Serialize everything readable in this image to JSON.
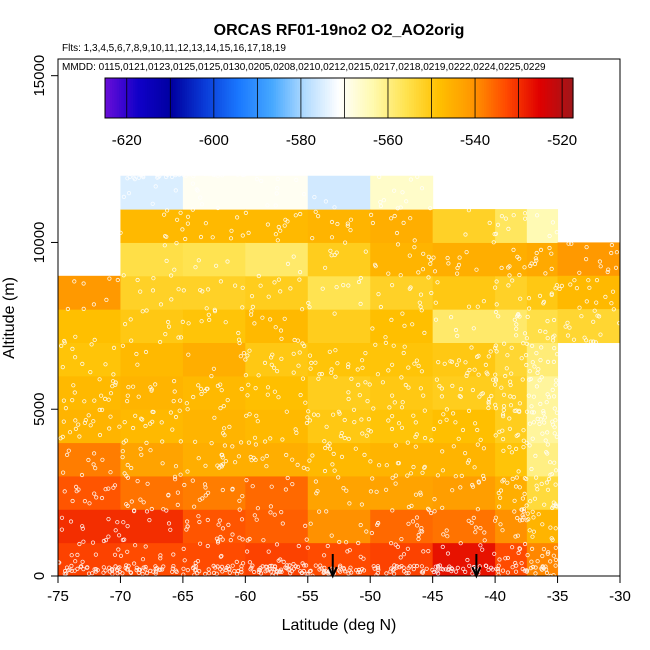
{
  "chart_data": {
    "type": "heatmap",
    "title": "ORCAS RF01-19no2 O2_AO2orig",
    "flights_line": "Flts: 1,3,4,5,6,7,8,9,10,11,12,13,14,15,16,17,18,19",
    "dates_line": "MMDD: 0115,0121,0123,0125,0125,0130,0205,0208,0210,0212,0215,0217,0218,0219,0222,0224,0225,0229",
    "xlabel": "Latitude (deg N)",
    "ylabel": "Altitude (m)",
    "xlim": [
      -75,
      -30
    ],
    "ylim": [
      0,
      15500
    ],
    "x_ticks": [
      -75,
      -70,
      -65,
      -60,
      -55,
      -50,
      -45,
      -40,
      -35,
      -30
    ],
    "x_tick_labels": [
      "-75",
      "-70",
      "-65",
      "-60",
      "-55",
      "-50",
      "-45",
      "-40",
      "-35",
      "-30"
    ],
    "y_ticks": [
      0,
      5000,
      10000,
      15000
    ],
    "y_tick_labels": [
      "0",
      "5000",
      "10000",
      "15000"
    ],
    "colorbar": {
      "min": -625,
      "max": -517.5,
      "ticks": [
        -620,
        -600,
        -580,
        -560,
        -540,
        -520
      ],
      "tick_labels": [
        "-620",
        "-600",
        "-580",
        "-560",
        "-540",
        "-520"
      ],
      "divisions": [
        -620,
        -610,
        -600,
        -590,
        -580,
        -570,
        -560,
        -550,
        -540,
        -530,
        -520
      ],
      "colors": [
        "#6a0dd8",
        "#1000c8",
        "#0000a0",
        "#0a3cd8",
        "#1a78ff",
        "#46a8ff",
        "#b4dcff",
        "#ffffff",
        "#fffab0",
        "#ffe350",
        "#ffc000",
        "#ff9600",
        "#ff4a00",
        "#e00000",
        "#a0161a"
      ]
    },
    "bin_width_deg": 5,
    "bin_height_m": 1000,
    "column_starts": [
      -75,
      -70,
      -65,
      -60,
      -55,
      -50,
      -45,
      -40,
      -35,
      -30
    ],
    "cells": [
      {
        "lat": -75,
        "alt": 0,
        "v": -532
      },
      {
        "lat": -75,
        "alt": 1000,
        "v": -530
      },
      {
        "lat": -75,
        "alt": 2000,
        "v": -534
      },
      {
        "lat": -75,
        "alt": 3000,
        "v": -538
      },
      {
        "lat": -75,
        "alt": 4000,
        "v": -546
      },
      {
        "lat": -75,
        "alt": 5000,
        "v": -547
      },
      {
        "lat": -75,
        "alt": 6000,
        "v": -549
      },
      {
        "lat": -75,
        "alt": 7000,
        "v": -548
      },
      {
        "lat": -75,
        "alt": 8000,
        "v": -541
      },
      {
        "lat": -70,
        "alt": 0,
        "v": -533
      },
      {
        "lat": -70,
        "alt": 1000,
        "v": -530
      },
      {
        "lat": -70,
        "alt": 2000,
        "v": -537
      },
      {
        "lat": -70,
        "alt": 3000,
        "v": -543
      },
      {
        "lat": -70,
        "alt": 4000,
        "v": -547
      },
      {
        "lat": -70,
        "alt": 5000,
        "v": -546
      },
      {
        "lat": -70,
        "alt": 6000,
        "v": -547
      },
      {
        "lat": -70,
        "alt": 7000,
        "v": -550
      },
      {
        "lat": -70,
        "alt": 8000,
        "v": -552
      },
      {
        "lat": -70,
        "alt": 9000,
        "v": -555
      },
      {
        "lat": -70,
        "alt": 10000,
        "v": -547
      },
      {
        "lat": -70,
        "alt": 11000,
        "v": -575
      },
      {
        "lat": -65,
        "alt": 0,
        "v": -533
      },
      {
        "lat": -65,
        "alt": 1000,
        "v": -534
      },
      {
        "lat": -65,
        "alt": 2000,
        "v": -538
      },
      {
        "lat": -65,
        "alt": 3000,
        "v": -545
      },
      {
        "lat": -65,
        "alt": 4000,
        "v": -546
      },
      {
        "lat": -65,
        "alt": 5000,
        "v": -547
      },
      {
        "lat": -65,
        "alt": 6000,
        "v": -545
      },
      {
        "lat": -65,
        "alt": 7000,
        "v": -549
      },
      {
        "lat": -65,
        "alt": 8000,
        "v": -552
      },
      {
        "lat": -65,
        "alt": 9000,
        "v": -556
      },
      {
        "lat": -65,
        "alt": 10000,
        "v": -547
      },
      {
        "lat": -65,
        "alt": 11000,
        "v": -570
      },
      {
        "lat": -60,
        "alt": 0,
        "v": -532
      },
      {
        "lat": -60,
        "alt": 1000,
        "v": -535
      },
      {
        "lat": -60,
        "alt": 2000,
        "v": -536
      },
      {
        "lat": -60,
        "alt": 3000,
        "v": -545
      },
      {
        "lat": -60,
        "alt": 4000,
        "v": -547
      },
      {
        "lat": -60,
        "alt": 5000,
        "v": -548
      },
      {
        "lat": -60,
        "alt": 6000,
        "v": -550
      },
      {
        "lat": -60,
        "alt": 7000,
        "v": -547
      },
      {
        "lat": -60,
        "alt": 8000,
        "v": -551
      },
      {
        "lat": -60,
        "alt": 9000,
        "v": -558
      },
      {
        "lat": -60,
        "alt": 10000,
        "v": -547
      },
      {
        "lat": -60,
        "alt": 11000,
        "v": -570
      },
      {
        "lat": -55,
        "alt": 0,
        "v": -533
      },
      {
        "lat": -55,
        "alt": 1000,
        "v": -540
      },
      {
        "lat": -55,
        "alt": 2000,
        "v": -543
      },
      {
        "lat": -55,
        "alt": 3000,
        "v": -547
      },
      {
        "lat": -55,
        "alt": 4000,
        "v": -550
      },
      {
        "lat": -55,
        "alt": 5000,
        "v": -551
      },
      {
        "lat": -55,
        "alt": 6000,
        "v": -549
      },
      {
        "lat": -55,
        "alt": 7000,
        "v": -551
      },
      {
        "lat": -55,
        "alt": 8000,
        "v": -556
      },
      {
        "lat": -55,
        "alt": 9000,
        "v": -551
      },
      {
        "lat": -55,
        "alt": 10000,
        "v": -546
      },
      {
        "lat": -55,
        "alt": 11000,
        "v": -576
      },
      {
        "lat": -50,
        "alt": 0,
        "v": -532
      },
      {
        "lat": -50,
        "alt": 1000,
        "v": -536
      },
      {
        "lat": -50,
        "alt": 2000,
        "v": -543
      },
      {
        "lat": -50,
        "alt": 3000,
        "v": -546
      },
      {
        "lat": -50,
        "alt": 4000,
        "v": -549
      },
      {
        "lat": -50,
        "alt": 5000,
        "v": -550
      },
      {
        "lat": -50,
        "alt": 6000,
        "v": -549
      },
      {
        "lat": -50,
        "alt": 7000,
        "v": -548
      },
      {
        "lat": -50,
        "alt": 8000,
        "v": -552
      },
      {
        "lat": -50,
        "alt": 9000,
        "v": -546
      },
      {
        "lat": -50,
        "alt": 10000,
        "v": -545
      },
      {
        "lat": -50,
        "alt": 11000,
        "v": -566
      },
      {
        "lat": -45,
        "alt": 0,
        "v": -527
      },
      {
        "lat": -45,
        "alt": 1000,
        "v": -537
      },
      {
        "lat": -45,
        "alt": 2000,
        "v": -542
      },
      {
        "lat": -45,
        "alt": 3000,
        "v": -546
      },
      {
        "lat": -45,
        "alt": 4000,
        "v": -548
      },
      {
        "lat": -45,
        "alt": 5000,
        "v": -551
      },
      {
        "lat": -45,
        "alt": 6000,
        "v": -550
      },
      {
        "lat": -45,
        "alt": 7000,
        "v": -558
      },
      {
        "lat": -45,
        "alt": 8000,
        "v": -550
      },
      {
        "lat": -45,
        "alt": 9000,
        "v": -545
      },
      {
        "lat": -45,
        "alt": 10000,
        "v": -552
      },
      {
        "lat": -40,
        "alt": 0,
        "v": -533
      },
      {
        "lat": -40,
        "alt": 1000,
        "v": -540
      },
      {
        "lat": -40,
        "alt": 2000,
        "v": -545
      },
      {
        "lat": -40,
        "alt": 3000,
        "v": -549
      },
      {
        "lat": -40,
        "alt": 4000,
        "v": -551
      },
      {
        "lat": -40,
        "alt": 5000,
        "v": -552
      },
      {
        "lat": -40,
        "alt": 6000,
        "v": -553
      },
      {
        "lat": -40,
        "alt": 7000,
        "v": -558
      },
      {
        "lat": -40,
        "alt": 8000,
        "v": -552
      },
      {
        "lat": -40,
        "alt": 9000,
        "v": -545
      },
      {
        "lat": -40,
        "alt": 10000,
        "v": -557
      },
      {
        "lat": -35,
        "alt": 7000,
        "v": -555
      },
      {
        "lat": -35,
        "alt": 8000,
        "v": -550
      },
      {
        "lat": -35,
        "alt": 9000,
        "v": -544
      },
      {
        "lat": -40,
        "alt": 3000,
        "v": -549
      }
    ],
    "extra_cells": [
      {
        "lat0": -37.5,
        "lat1": -35,
        "alt": 0,
        "v": -539
      },
      {
        "lat0": -37.5,
        "lat1": -35,
        "alt": 1000,
        "v": -546
      },
      {
        "lat0": -37.5,
        "lat1": -35,
        "alt": 2000,
        "v": -554
      },
      {
        "lat0": -37.5,
        "lat1": -35,
        "alt": 3000,
        "v": -560
      },
      {
        "lat0": -37.5,
        "lat1": -35,
        "alt": 4000,
        "v": -562
      },
      {
        "lat0": -37.5,
        "lat1": -35,
        "alt": 5000,
        "v": -562
      },
      {
        "lat0": -37.5,
        "lat1": -35,
        "alt": 6000,
        "v": -559
      },
      {
        "lat0": -37.5,
        "lat1": -35,
        "alt": 7000,
        "v": -555
      },
      {
        "lat0": -37.5,
        "lat1": -35,
        "alt": 8000,
        "v": -550
      },
      {
        "lat0": -37.5,
        "lat1": -35,
        "alt": 9000,
        "v": -544
      },
      {
        "lat0": -37.5,
        "lat1": -35,
        "alt": 10000,
        "v": -564
      },
      {
        "lat0": -40,
        "lat1": -37.5,
        "alt": 0,
        "v": -533
      },
      {
        "lat0": -40,
        "lat1": -37.5,
        "alt": 1000,
        "v": -540
      },
      {
        "lat0": -40,
        "lat1": -37.5,
        "alt": 2000,
        "v": -545
      },
      {
        "lat0": -40,
        "lat1": -37.5,
        "alt": 3000,
        "v": -549
      },
      {
        "lat0": -40,
        "lat1": -37.5,
        "alt": 4000,
        "v": -551
      },
      {
        "lat0": -40,
        "lat1": -37.5,
        "alt": 5000,
        "v": -552
      },
      {
        "lat0": -40,
        "lat1": -37.5,
        "alt": 6000,
        "v": -553
      },
      {
        "lat0": -40,
        "lat1": -37.5,
        "alt": 7000,
        "v": -558
      },
      {
        "lat0": -40,
        "lat1": -37.5,
        "alt": 8000,
        "v": -552
      },
      {
        "lat0": -40,
        "lat1": -37.5,
        "alt": 9000,
        "v": -545
      },
      {
        "lat0": -40,
        "lat1": -37.5,
        "alt": 10000,
        "v": -557
      },
      {
        "lat0": -35,
        "lat1": -30,
        "alt": 9000,
        "v": -541
      },
      {
        "lat0": -35,
        "lat1": -30,
        "alt": 8000,
        "v": -547
      },
      {
        "lat0": -35,
        "lat1": -30,
        "alt": 7000,
        "v": -553
      }
    ],
    "arrows_lat": [
      -53,
      -41.5
    ],
    "scatter_seed": 7,
    "scatter_points": 1500
  }
}
